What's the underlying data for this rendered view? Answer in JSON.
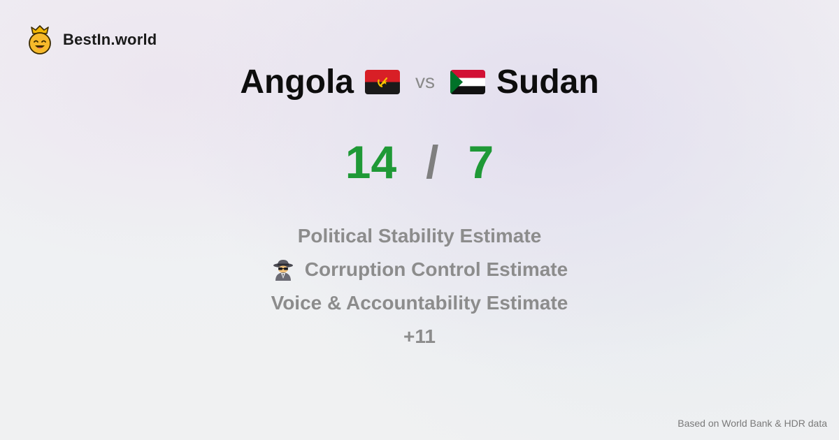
{
  "brand": {
    "name": "BestIn.world",
    "logo_icon": "crowned-smiley-icon"
  },
  "comparison": {
    "left_country": "Angola",
    "left_flag": "angola-flag-icon",
    "vs_label": "vs",
    "right_country": "Sudan",
    "right_flag": "sudan-flag-icon"
  },
  "score": {
    "left": "14",
    "separator": "/",
    "right": "7",
    "color": "#1f9936"
  },
  "metrics": {
    "items": [
      {
        "label": "Political Stability Estimate",
        "icon": ""
      },
      {
        "label": "Corruption Control Estimate",
        "icon": "detective-icon"
      },
      {
        "label": "Voice & Accountability Estimate",
        "icon": ""
      }
    ],
    "more": "+11"
  },
  "footer": {
    "source_note": "Based on World Bank & HDR data"
  }
}
